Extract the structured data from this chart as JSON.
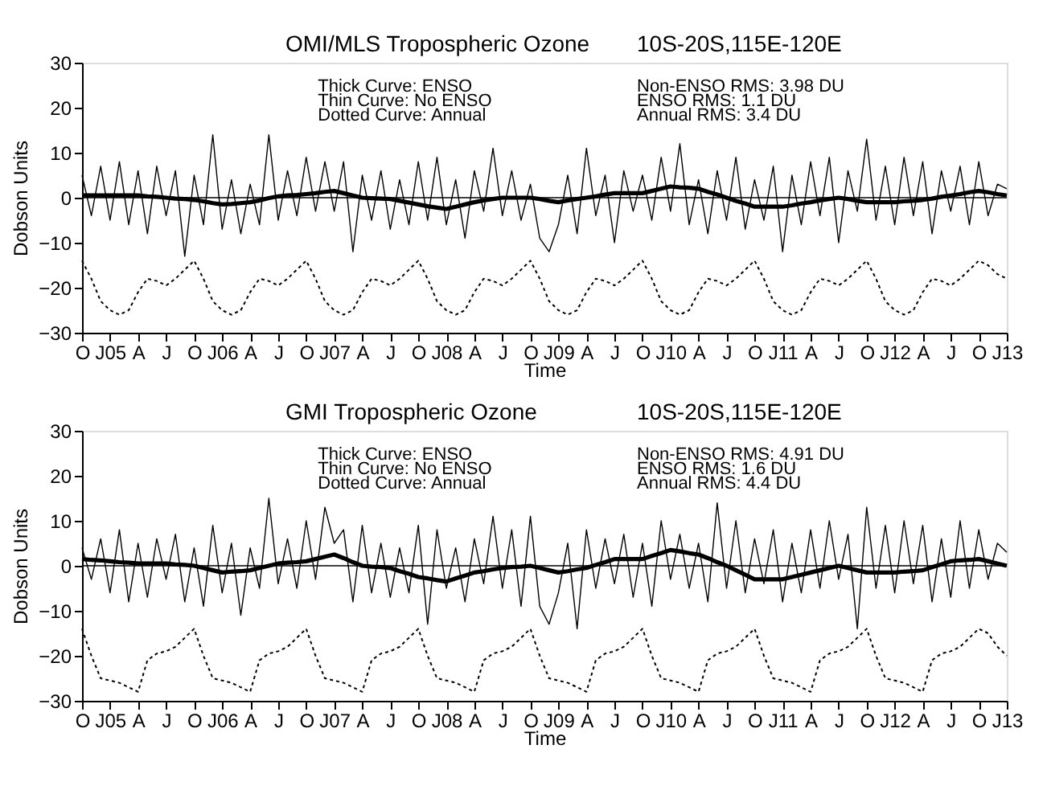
{
  "chart_data": [
    {
      "type": "line",
      "title": "OMI/MLS Tropospheric Ozone",
      "subtitle": "10S-20S,115E-120E",
      "xlabel": "Time",
      "ylabel": "Dobson Units",
      "annotations": [
        "Thick Curve: ENSO",
        "Thin Curve: No ENSO",
        "Dotted Curve: Annual",
        "Non-ENSO RMS:  3.98 DU",
        "ENSO RMS:  1.1 DU",
        "Annual RMS:  3.4 DU"
      ],
      "ylim": [
        -30,
        30
      ],
      "yticks": [
        -30,
        -20,
        -10,
        0,
        10,
        20,
        30
      ],
      "categories": [
        "O",
        null,
        null,
        "J05",
        null,
        null,
        "A",
        null,
        null,
        "J",
        null,
        null,
        "O",
        null,
        null,
        "J06",
        null,
        null,
        "A",
        null,
        null,
        "J",
        null,
        null,
        "O",
        null,
        null,
        "J07",
        null,
        null,
        "A",
        null,
        null,
        "J",
        null,
        null,
        "O",
        null,
        null,
        "J08",
        null,
        null,
        "A",
        null,
        null,
        "J",
        null,
        null,
        "O",
        null,
        null,
        "J09",
        null,
        null,
        "A",
        null,
        null,
        "J",
        null,
        null,
        "O",
        null,
        null,
        "J10",
        null,
        null,
        "A",
        null,
        null,
        "J",
        null,
        null,
        "O",
        null,
        null,
        "J11",
        null,
        null,
        "A",
        null,
        null,
        "J",
        null,
        null,
        "O",
        null,
        null,
        "J12",
        null,
        null,
        "A",
        null,
        null,
        "J",
        null,
        null,
        "O",
        null,
        null,
        "J13"
      ],
      "ref_lines": [
        {
          "axis": "y",
          "value": 0,
          "color": "#000000"
        }
      ],
      "series": [
        {
          "color": "#000000",
          "line_style": "solid",
          "values": [
            5,
            -4,
            7,
            -5,
            8,
            -6,
            6,
            -8,
            7,
            -4,
            6,
            -13,
            5,
            -6,
            14,
            -7,
            4,
            -8,
            3,
            -6,
            14,
            -5,
            6,
            -4,
            9,
            -3,
            8,
            -3,
            8,
            -12,
            5,
            -5,
            6,
            -7,
            4,
            -6,
            8,
            -5,
            9,
            -6,
            4,
            -9,
            6,
            -3,
            11,
            -4,
            6,
            -5,
            3,
            -9,
            -12,
            -6,
            5,
            -8,
            11,
            -4,
            5,
            -10,
            6,
            -3,
            5,
            -5,
            9,
            -3,
            12,
            -6,
            4,
            -8,
            6,
            -5,
            9,
            -7,
            4,
            -5,
            7,
            -12,
            5,
            -6,
            8,
            -4,
            9,
            -10,
            6,
            -3,
            13,
            -5,
            7,
            -6,
            9,
            -4,
            8,
            -8,
            6,
            -3,
            7,
            -6,
            8,
            -4,
            3,
            2
          ]
        },
        {
          "color": "#000000",
          "line_style": "solid",
          "values": [
            0.5,
            0.5,
            0.5,
            0.5,
            0.5,
            0.5,
            0.5,
            0.3,
            0.2,
            0,
            -0.2,
            -0.3,
            -0.5,
            -0.8,
            -1.2,
            -1.5,
            -1.4,
            -1.2,
            -1,
            -0.6,
            -0.1,
            0.3,
            0.5,
            0.6,
            0.8,
            1,
            1.3,
            1.5,
            1,
            0.5,
            0,
            -0.1,
            -0.2,
            -0.3,
            -0.7,
            -1.1,
            -1.5,
            -1.9,
            -2.2,
            -2.5,
            -2,
            -1.5,
            -1,
            -0.6,
            -0.3,
            0,
            0,
            0,
            0,
            -0.3,
            -0.7,
            -1,
            -0.6,
            -0.3,
            0,
            0.3,
            0.7,
            1,
            1,
            1,
            1,
            1.5,
            2,
            2.5,
            2.3,
            2.2,
            2,
            1.3,
            0.7,
            0,
            -0.7,
            -1.3,
            -2,
            -2,
            -2,
            -2,
            -1.7,
            -1.3,
            -1,
            -0.6,
            -0.3,
            0,
            -0.3,
            -0.7,
            -1,
            -1,
            -1,
            -1,
            -0.8,
            -0.7,
            -0.5,
            -0.2,
            0.2,
            0.5,
            0.8,
            1.2,
            1.5,
            1.2,
            0.8,
            0.5
          ]
        },
        {
          "color": "#000000",
          "line_style": "dotted",
          "values": [
            -14,
            -18,
            -23,
            -25,
            -26,
            -25,
            -21,
            -18,
            -18.5,
            -19.5,
            -18,
            -16,
            -14,
            -18,
            -23,
            -25,
            -26,
            -25,
            -21,
            -18,
            -18.5,
            -19.5,
            -18,
            -16,
            -14,
            -18,
            -23,
            -25,
            -26,
            -25,
            -21,
            -18,
            -18.5,
            -19.5,
            -18,
            -16,
            -14,
            -18,
            -23,
            -25,
            -26,
            -25,
            -21,
            -18,
            -18.5,
            -19.5,
            -18,
            -16,
            -14,
            -18,
            -23,
            -25,
            -26,
            -25,
            -21,
            -18,
            -18.5,
            -19.5,
            -18,
            -16,
            -14,
            -18,
            -23,
            -25,
            -26,
            -25,
            -21,
            -18,
            -18.5,
            -19.5,
            -18,
            -16,
            -14,
            -18,
            -23,
            -25,
            -26,
            -25,
            -21,
            -18,
            -18.5,
            -19.5,
            -18,
            -16,
            -14,
            -18,
            -23,
            -25,
            -26,
            -25,
            -21,
            -18,
            -18.5,
            -19.5,
            -18,
            -16,
            -14,
            -15,
            -17,
            -18
          ]
        }
      ]
    },
    {
      "type": "line",
      "title": "GMI Tropospheric Ozone",
      "subtitle": "10S-20S,115E-120E",
      "xlabel": "Time",
      "ylabel": "Dobson Units",
      "annotations": [
        "Thick Curve: ENSO",
        "Thin Curve: No ENSO",
        "Dotted Curve: Annual",
        "Non-ENSO RMS:  4.91 DU",
        "ENSO RMS:  1.6 DU",
        "Annual RMS:  4.4 DU"
      ],
      "ylim": [
        -30,
        30
      ],
      "yticks": [
        -30,
        -20,
        -10,
        0,
        10,
        20,
        30
      ],
      "categories": [
        "O",
        null,
        null,
        "J05",
        null,
        null,
        "A",
        null,
        null,
        "J",
        null,
        null,
        "O",
        null,
        null,
        "J06",
        null,
        null,
        "A",
        null,
        null,
        "J",
        null,
        null,
        "O",
        null,
        null,
        "J07",
        null,
        null,
        "A",
        null,
        null,
        "J",
        null,
        null,
        "O",
        null,
        null,
        "J08",
        null,
        null,
        "A",
        null,
        null,
        "J",
        null,
        null,
        "O",
        null,
        null,
        "J09",
        null,
        null,
        "A",
        null,
        null,
        "J",
        null,
        null,
        "O",
        null,
        null,
        "J10",
        null,
        null,
        "A",
        null,
        null,
        "J",
        null,
        null,
        "O",
        null,
        null,
        "J11",
        null,
        null,
        "A",
        null,
        null,
        "J",
        null,
        null,
        "O",
        null,
        null,
        "J12",
        null,
        null,
        "A",
        null,
        null,
        "J",
        null,
        null,
        "O",
        null,
        null,
        "J13"
      ],
      "ref_lines": [
        {
          "axis": "y",
          "value": 0,
          "color": "#000000"
        }
      ],
      "series": [
        {
          "color": "#000000",
          "line_style": "solid",
          "values": [
            4,
            -3,
            6,
            -6,
            8,
            -8,
            5,
            -7,
            6,
            -3,
            7,
            -8,
            4,
            -9,
            9,
            -6,
            5,
            -11,
            4,
            -5,
            15,
            -4,
            6,
            -5,
            10,
            -3,
            13,
            5,
            8,
            -8,
            9,
            -6,
            5,
            -7,
            4,
            -6,
            9,
            -13,
            8,
            -5,
            4,
            -8,
            6,
            -4,
            11,
            -5,
            8,
            -9,
            11,
            -9,
            -13,
            -6,
            5,
            -14,
            8,
            -5,
            6,
            -4,
            7,
            -7,
            5,
            -9,
            10,
            -3,
            7,
            -5,
            5,
            -8,
            14,
            -5,
            10,
            -6,
            6,
            -4,
            8,
            -8,
            5,
            -6,
            8,
            -5,
            10,
            -3,
            7,
            -14,
            13,
            -5,
            9,
            -6,
            10,
            -4,
            9,
            -8,
            6,
            -7,
            10,
            -5,
            8,
            -3,
            5,
            3
          ]
        },
        {
          "color": "#000000",
          "line_style": "solid",
          "values": [
            1.5,
            1.3,
            1.2,
            1,
            0.8,
            0.7,
            0.5,
            0.5,
            0.5,
            0.5,
            0.3,
            0.2,
            0,
            -0.5,
            -1,
            -1.5,
            -1.3,
            -1.2,
            -1,
            -0.5,
            0,
            0.5,
            0.7,
            0.8,
            1,
            1.5,
            2,
            2.5,
            1.7,
            0.8,
            0,
            -0.2,
            -0.3,
            -0.5,
            -1.2,
            -1.8,
            -2.5,
            -2.8,
            -3.2,
            -3.5,
            -2.8,
            -2.2,
            -1.5,
            -1.2,
            -0.8,
            -0.5,
            -0.3,
            -0.2,
            0,
            -0.5,
            -1,
            -1.5,
            -1.2,
            -0.8,
            -0.5,
            0.2,
            0.8,
            1.5,
            1.5,
            1.5,
            1.5,
            2.2,
            2.8,
            3.5,
            3.2,
            2.8,
            2.5,
            1.7,
            0.8,
            0,
            -1,
            -2,
            -3,
            -3,
            -3,
            -3,
            -2.5,
            -2,
            -1.5,
            -1,
            -0.5,
            0,
            -0.5,
            -1,
            -1.5,
            -1.5,
            -1.5,
            -1.5,
            -1.3,
            -1.2,
            -1,
            -0.3,
            0.3,
            1,
            1.2,
            1.3,
            1.5,
            1,
            0.5,
            0
          ]
        },
        {
          "color": "#000000",
          "line_style": "dotted",
          "values": [
            -14,
            -20,
            -25,
            -25.5,
            -26,
            -27,
            -28,
            -21,
            -19.5,
            -19,
            -18,
            -16,
            -14,
            -20,
            -25,
            -25.5,
            -26,
            -27,
            -28,
            -21,
            -19.5,
            -19,
            -18,
            -16,
            -14,
            -20,
            -25,
            -25.5,
            -26,
            -27,
            -28,
            -21,
            -19.5,
            -19,
            -18,
            -16,
            -14,
            -20,
            -25,
            -25.5,
            -26,
            -27,
            -28,
            -21,
            -19.5,
            -19,
            -18,
            -16,
            -14,
            -20,
            -25,
            -25.5,
            -26,
            -27,
            -28,
            -21,
            -19.5,
            -19,
            -18,
            -16,
            -14,
            -20,
            -25,
            -25.5,
            -26,
            -27,
            -28,
            -21,
            -19.5,
            -19,
            -18,
            -16,
            -14,
            -20,
            -25,
            -25.5,
            -26,
            -27,
            -28,
            -21,
            -19.5,
            -19,
            -18,
            -16,
            -14,
            -20,
            -25,
            -25.5,
            -26,
            -27,
            -28,
            -21,
            -19.5,
            -19,
            -18,
            -16,
            -14,
            -15,
            -18,
            -20
          ]
        }
      ]
    }
  ]
}
